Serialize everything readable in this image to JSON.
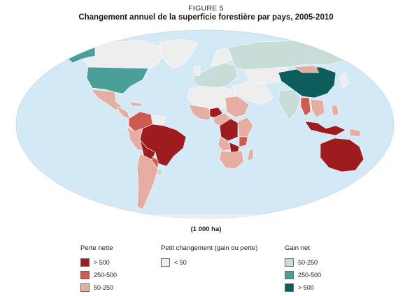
{
  "figure_label": "FIGURE 5",
  "title": "Changement annuel de la superficie forestière par pays, 2005-2010",
  "unit": "(1 000 ha)",
  "colors": {
    "ocean": "#d3e9f6",
    "loss_high": "#9e1b20",
    "loss_mid": "#cf5a52",
    "loss_low": "#e6ada2",
    "small": "#eeeeee",
    "gain_low": "#c9ddd8",
    "gain_mid": "#4a9f98",
    "gain_high": "#0d5d5c"
  },
  "legend": {
    "loss": {
      "title": "Perte nette",
      "items": [
        {
          "label": "> 500",
          "color": "#9e1b20"
        },
        {
          "label": "250-500",
          "color": "#cf5a52"
        },
        {
          "label": "50-250",
          "color": "#e6ada2"
        }
      ]
    },
    "small": {
      "title": "Petit changement (gain ou perte)",
      "items": [
        {
          "label": "< 50",
          "color": "#eeeeee"
        }
      ]
    },
    "gain": {
      "title": "Gain net",
      "items": [
        {
          "label": "50-250",
          "color": "#c9ddd8"
        },
        {
          "label": "250-500",
          "color": "#4a9f98"
        },
        {
          "label": "> 500",
          "color": "#0d5d5c"
        }
      ]
    }
  }
}
